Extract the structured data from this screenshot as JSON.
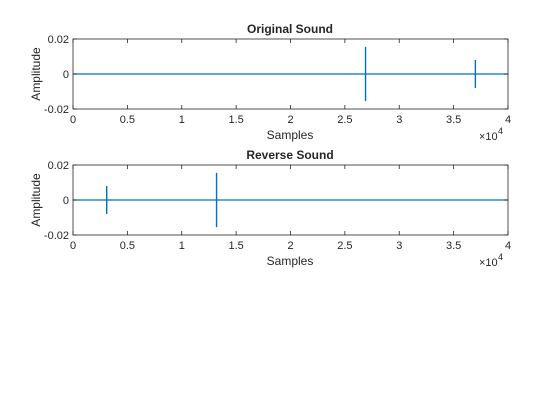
{
  "figure": {
    "background": "#ffffff",
    "line_color": "#0072bd",
    "axis_color": "#262626"
  },
  "chart_data": [
    {
      "type": "line",
      "title": "Original Sound",
      "xlabel": "Samples",
      "ylabel": "Amplitude",
      "xlim": [
        0,
        40000
      ],
      "ylim": [
        -0.02,
        0.02
      ],
      "x_tick_values": [
        0,
        5000,
        10000,
        15000,
        20000,
        25000,
        30000,
        35000,
        40000
      ],
      "x_tick_labels": [
        "0",
        "0.5",
        "1",
        "1.5",
        "2",
        "2.5",
        "3",
        "3.5",
        "4"
      ],
      "x_exponent_base": "×10",
      "x_exponent_power": "4",
      "y_tick_values": [
        0.02,
        0,
        -0.02
      ],
      "y_tick_labels": [
        "0.02",
        "0",
        "-0.02"
      ],
      "grid": false,
      "series": [
        {
          "baseline": 0,
          "spikes": [
            {
              "x": 26900,
              "min": -0.0155,
              "max": 0.0155
            },
            {
              "x": 37000,
              "min": -0.008,
              "max": 0.008
            }
          ]
        }
      ]
    },
    {
      "type": "line",
      "title": "Reverse Sound",
      "xlabel": "Samples",
      "ylabel": "Amplitude",
      "xlim": [
        0,
        40000
      ],
      "ylim": [
        -0.02,
        0.02
      ],
      "x_tick_values": [
        0,
        5000,
        10000,
        15000,
        20000,
        25000,
        30000,
        35000,
        40000
      ],
      "x_tick_labels": [
        "0",
        "0.5",
        "1",
        "1.5",
        "2",
        "2.5",
        "3",
        "3.5",
        "4"
      ],
      "x_exponent_base": "×10",
      "x_exponent_power": "4",
      "y_tick_values": [
        0.02,
        0,
        -0.02
      ],
      "y_tick_labels": [
        "0.02",
        "0",
        "-0.02"
      ],
      "grid": false,
      "series": [
        {
          "baseline": 0,
          "spikes": [
            {
              "x": 3100,
              "min": -0.008,
              "max": 0.008
            },
            {
              "x": 13200,
              "min": -0.0155,
              "max": 0.0155
            }
          ]
        }
      ]
    }
  ]
}
